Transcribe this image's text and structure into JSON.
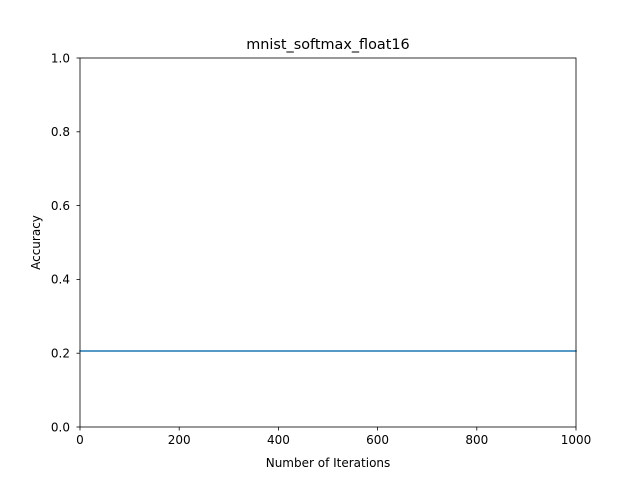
{
  "chart_data": {
    "type": "line",
    "title": "mnist_softmax_float16",
    "xlabel": "Number of Iterations",
    "ylabel": "Accuracy",
    "xlim": [
      0,
      1000
    ],
    "ylim": [
      0.0,
      1.0
    ],
    "xticks": [
      0,
      200,
      400,
      600,
      800,
      1000
    ],
    "xtick_labels": [
      "0",
      "200",
      "400",
      "600",
      "800",
      "1000"
    ],
    "yticks": [
      0.0,
      0.2,
      0.4,
      0.6,
      0.8,
      1.0
    ],
    "ytick_labels": [
      "0.0",
      "0.2",
      "0.4",
      "0.6",
      "0.8",
      "1.0"
    ],
    "grid": false,
    "series": [
      {
        "color": "#1f77b4",
        "x": [
          0,
          1000
        ],
        "y": [
          0.206,
          0.206
        ]
      }
    ]
  }
}
